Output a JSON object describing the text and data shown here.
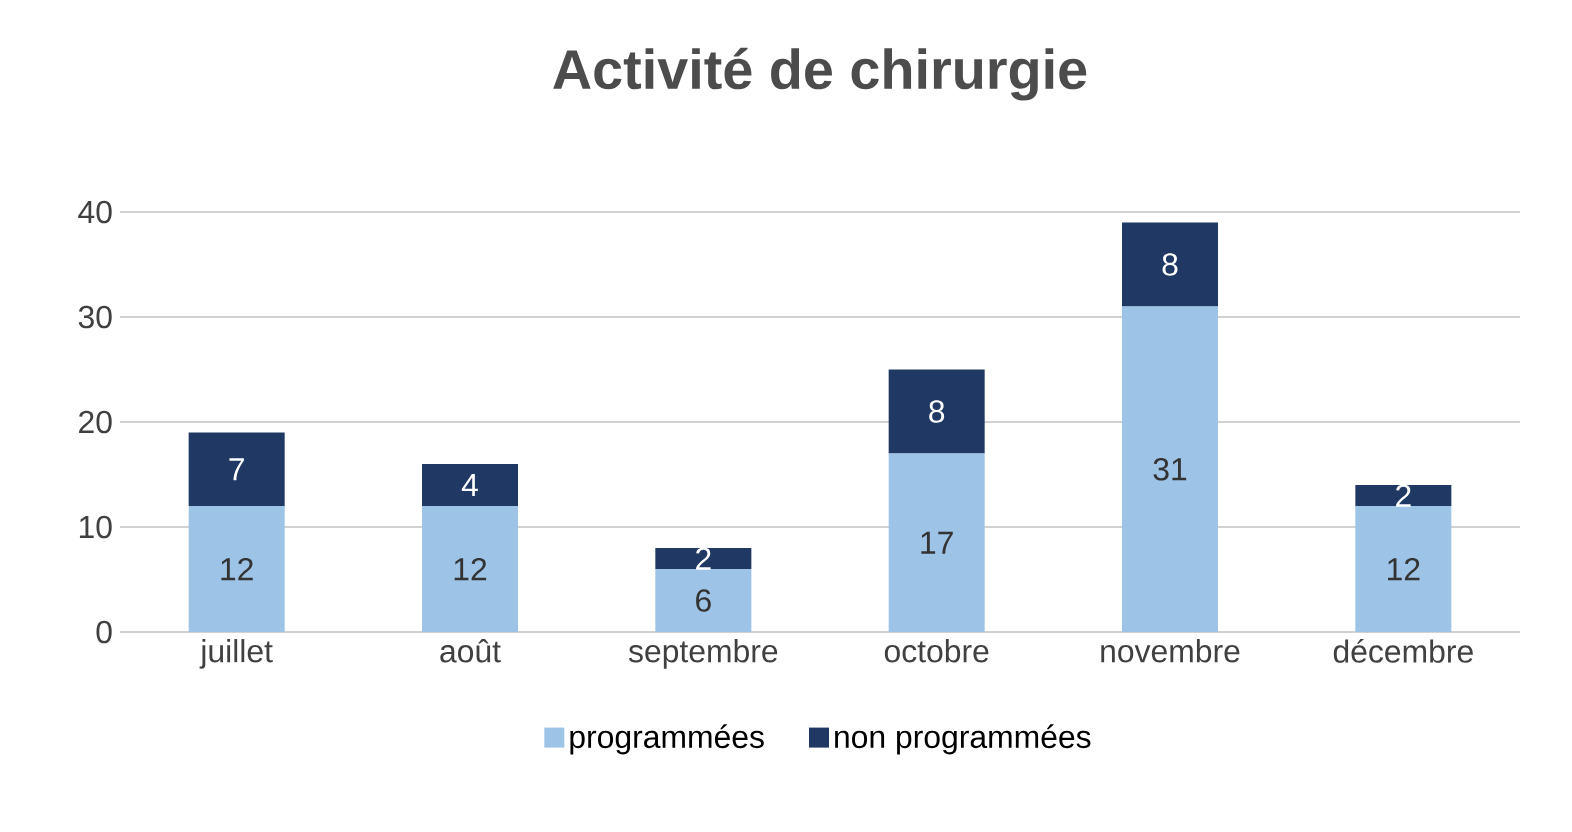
{
  "chart_data": {
    "type": "bar",
    "title": "Activité de chirurgie",
    "stacked": true,
    "categories": [
      "juillet",
      "août",
      "septembre",
      "octobre",
      "novembre",
      "décembre"
    ],
    "series": [
      {
        "name": "programmées",
        "color": "#9dc3e6",
        "values": [
          12,
          12,
          6,
          17,
          31,
          12
        ]
      },
      {
        "name": "non programmées",
        "color": "#1f3864",
        "values": [
          7,
          4,
          2,
          8,
          8,
          2
        ]
      }
    ],
    "ylim": [
      0,
      40
    ],
    "yticks": [
      0,
      10,
      20,
      30,
      40
    ],
    "grid": "y",
    "legend": "bottom",
    "data_labels": true
  }
}
